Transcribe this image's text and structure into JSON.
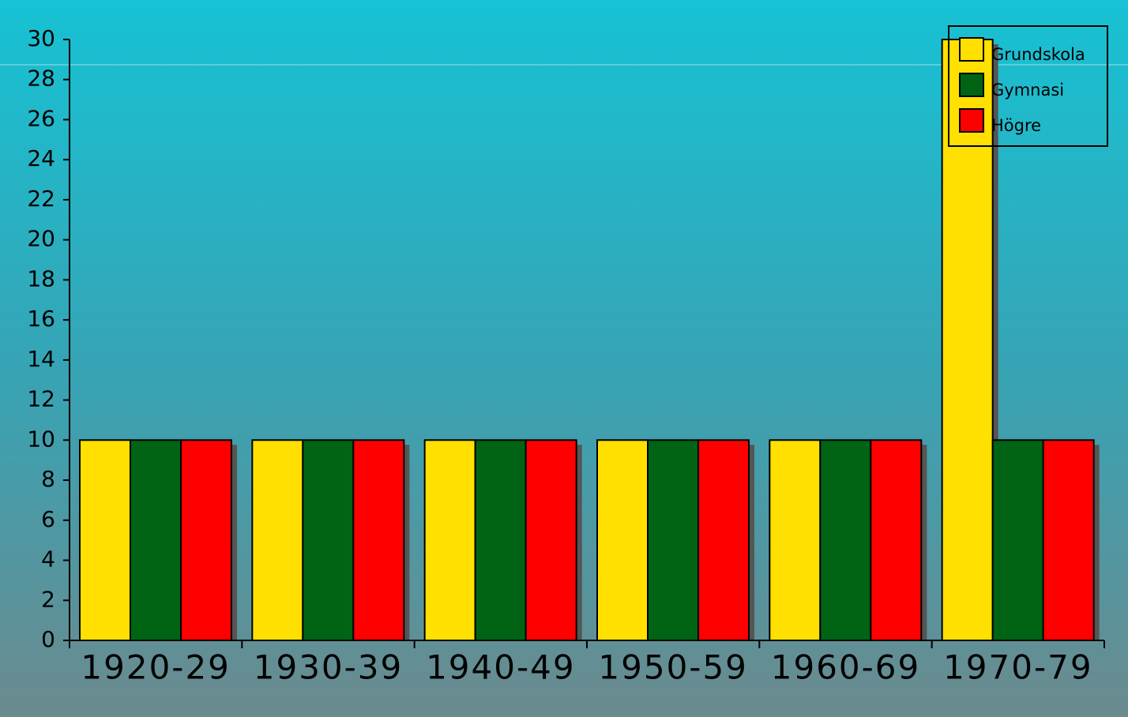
{
  "chart_data": {
    "type": "bar",
    "categories": [
      "1920-29",
      "1930-39",
      "1940-49",
      "1950-59",
      "1960-69",
      "1970-79"
    ],
    "series": [
      {
        "name": "Grundskola",
        "color": "#ffe000",
        "values": [
          10,
          10,
          10,
          10,
          10,
          30
        ]
      },
      {
        "name": "Gymnasi",
        "color": "#006414",
        "values": [
          10,
          10,
          10,
          10,
          10,
          10
        ]
      },
      {
        "name": "Högre",
        "color": "#ff0000",
        "values": [
          10,
          10,
          10,
          10,
          10,
          10
        ]
      }
    ],
    "ylim": [
      0,
      30
    ],
    "yticks": [
      0,
      2,
      4,
      6,
      8,
      10,
      12,
      14,
      16,
      18,
      20,
      22,
      24,
      26,
      28,
      30
    ],
    "grid": false,
    "legend": "top-right"
  }
}
